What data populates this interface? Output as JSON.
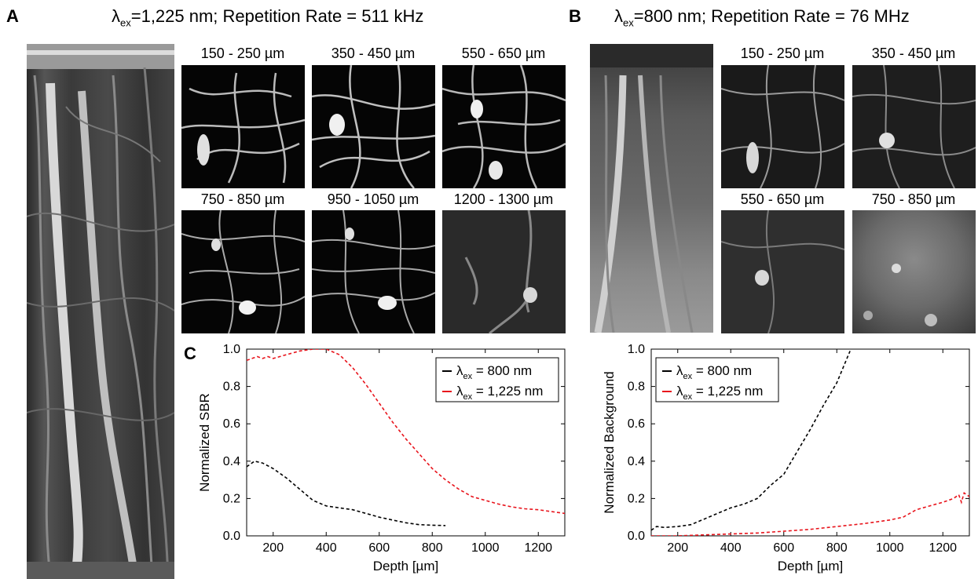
{
  "panels": {
    "a": {
      "letter": "A",
      "title_pre": "λ",
      "title_sub": "ex",
      "title_post": "=1,225 nm; Repetition Rate = 511 kHz"
    },
    "b": {
      "letter": "B",
      "title_pre": "λ",
      "title_sub": "ex",
      "title_post": "=800 nm; Repetition Rate = 76 MHz"
    },
    "c": {
      "letter": "C"
    }
  },
  "tiles_a": [
    {
      "label": "150 - 250 µm"
    },
    {
      "label": "350 - 450 µm"
    },
    {
      "label": "550 - 650 µm"
    },
    {
      "label": "750 - 850 µm"
    },
    {
      "label": "950 - 1050 µm"
    },
    {
      "label": "1200 - 1300 µm"
    }
  ],
  "tiles_b": [
    {
      "label": "150 - 250 µm"
    },
    {
      "label": "350 - 450 µm"
    },
    {
      "label": "550 - 650 µm"
    },
    {
      "label": "750 - 850 µm"
    }
  ],
  "colors": {
    "series_800": "#000000",
    "series_1225": "#e8141c"
  },
  "chart_data": [
    {
      "type": "line",
      "xlabel": "Depth [µm]",
      "ylabel": "Normalized SBR",
      "xlim": [
        100,
        1300
      ],
      "ylim": [
        0,
        1
      ],
      "xticks": [
        200,
        400,
        600,
        800,
        1000,
        1200
      ],
      "yticks": [
        0.0,
        0.2,
        0.4,
        0.6,
        0.8,
        1.0
      ],
      "ytick_labels": [
        "0.0",
        "0.2",
        "0.4",
        "0.6",
        "0.8",
        "1.0"
      ],
      "legend": "top-right",
      "line_style": "dashed",
      "series": [
        {
          "legend_sym": "λ",
          "legend_sub": "ex",
          "legend_rest": " = 800 nm",
          "color": "#000000",
          "x": [
            100,
            130,
            160,
            200,
            250,
            300,
            350,
            400,
            450,
            500,
            550,
            600,
            650,
            700,
            750,
            800,
            850
          ],
          "y": [
            0.37,
            0.4,
            0.39,
            0.36,
            0.31,
            0.25,
            0.19,
            0.16,
            0.15,
            0.14,
            0.12,
            0.1,
            0.085,
            0.07,
            0.06,
            0.057,
            0.055
          ]
        },
        {
          "legend_sym": "λ",
          "legend_sub": "ex",
          "legend_rest": " = 1,225 nm",
          "color": "#e8141c",
          "x": [
            100,
            120,
            140,
            160,
            180,
            200,
            250,
            300,
            350,
            400,
            450,
            500,
            550,
            600,
            650,
            700,
            750,
            800,
            850,
            900,
            950,
            1000,
            1050,
            1100,
            1150,
            1200,
            1250,
            1300
          ],
          "y": [
            0.94,
            0.95,
            0.96,
            0.95,
            0.96,
            0.95,
            0.97,
            0.99,
            1.0,
            1.0,
            0.97,
            0.9,
            0.81,
            0.71,
            0.61,
            0.52,
            0.44,
            0.36,
            0.3,
            0.25,
            0.21,
            0.19,
            0.17,
            0.155,
            0.145,
            0.14,
            0.13,
            0.12
          ]
        }
      ]
    },
    {
      "type": "line",
      "xlabel": "Depth [µm]",
      "ylabel": "Normalized Background",
      "xlim": [
        100,
        1300
      ],
      "ylim": [
        0,
        1
      ],
      "xticks": [
        200,
        400,
        600,
        800,
        1000,
        1200
      ],
      "yticks": [
        0.0,
        0.2,
        0.4,
        0.6,
        0.8,
        1.0
      ],
      "ytick_labels": [
        "0.0",
        "0.2",
        "0.4",
        "0.6",
        "0.8",
        "1.0"
      ],
      "legend": "top-left",
      "line_style": "dashed",
      "series": [
        {
          "legend_sym": "λ",
          "legend_sub": "ex",
          "legend_rest": " = 800 nm",
          "color": "#000000",
          "x": [
            100,
            120,
            150,
            200,
            250,
            300,
            350,
            400,
            450,
            500,
            550,
            600,
            650,
            700,
            750,
            800,
            850
          ],
          "y": [
            0.03,
            0.05,
            0.045,
            0.05,
            0.06,
            0.09,
            0.12,
            0.15,
            0.17,
            0.2,
            0.27,
            0.33,
            0.45,
            0.57,
            0.7,
            0.82,
            0.99
          ]
        },
        {
          "legend_sym": "λ",
          "legend_sub": "ex",
          "legend_rest": " = 1,225 nm",
          "color": "#e8141c",
          "x": [
            100,
            200,
            300,
            400,
            500,
            600,
            700,
            800,
            900,
            1000,
            1050,
            1100,
            1150,
            1200,
            1220,
            1240,
            1260,
            1270,
            1280,
            1300
          ],
          "y": [
            0.0,
            0.0,
            0.005,
            0.01,
            0.015,
            0.025,
            0.035,
            0.05,
            0.065,
            0.085,
            0.1,
            0.14,
            0.16,
            0.18,
            0.19,
            0.2,
            0.22,
            0.18,
            0.23,
            0.21
          ]
        }
      ]
    }
  ]
}
